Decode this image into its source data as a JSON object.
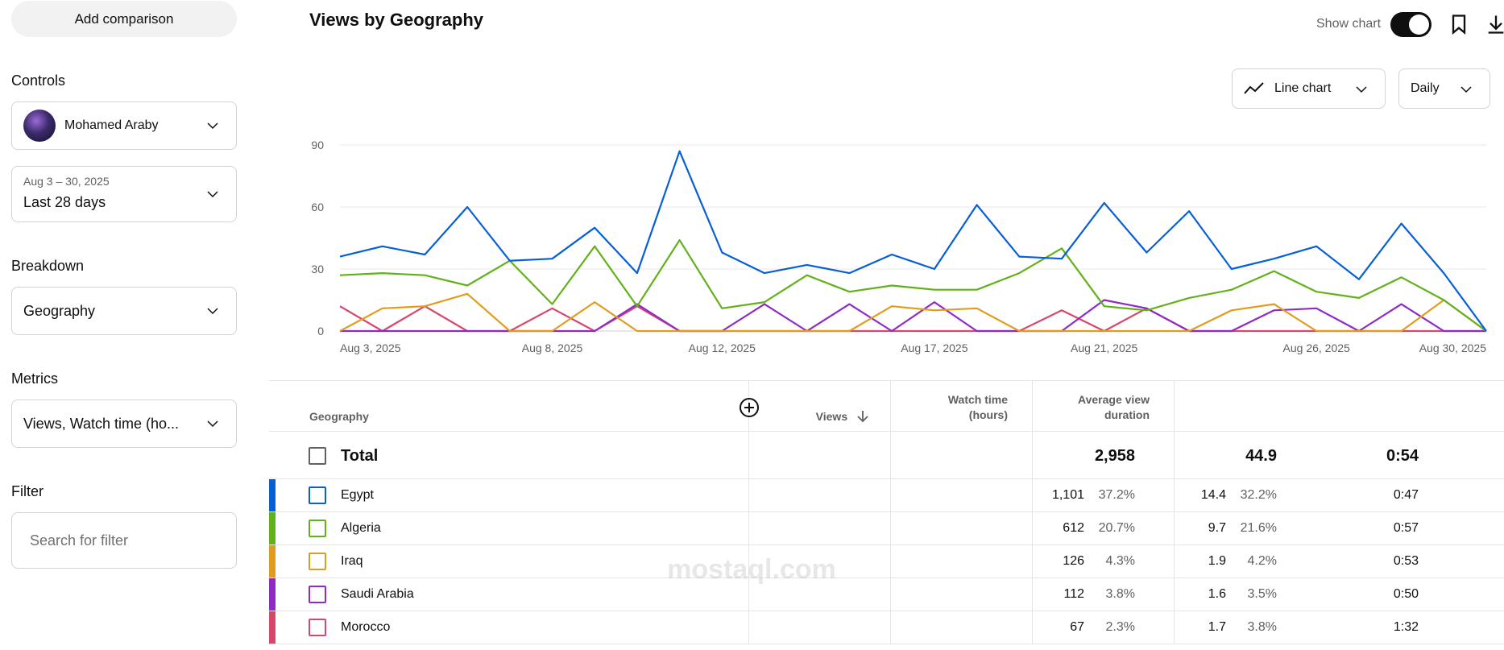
{
  "sidebar": {
    "add_comparison_label": "Add comparison",
    "controls_title": "Controls",
    "channel_name": "Mohamed Araby",
    "date_range_small": "Aug 3 – 30, 2025",
    "date_range_label": "Last 28 days",
    "breakdown_title": "Breakdown",
    "breakdown_value": "Geography",
    "metrics_title": "Metrics",
    "metrics_value": "Views, Watch time (ho...",
    "filter_title": "Filter",
    "filter_placeholder": "Search for filter"
  },
  "header": {
    "title": "Views by Geography",
    "show_chart_label": "Show chart",
    "show_chart_on": true,
    "chart_type_label": "Line chart",
    "period_label": "Daily"
  },
  "chart_data": {
    "type": "line",
    "x": [
      "Aug 3",
      "Aug 4",
      "Aug 5",
      "Aug 6",
      "Aug 7",
      "Aug 8",
      "Aug 9",
      "Aug 10",
      "Aug 11",
      "Aug 12",
      "Aug 13",
      "Aug 14",
      "Aug 15",
      "Aug 16",
      "Aug 17",
      "Aug 18",
      "Aug 19",
      "Aug 20",
      "Aug 21",
      "Aug 22",
      "Aug 23",
      "Aug 24",
      "Aug 25",
      "Aug 26",
      "Aug 27",
      "Aug 28",
      "Aug 29",
      "Aug 30"
    ],
    "x_tick_labels": [
      "Aug 3, 2025",
      "Aug 8, 2025",
      "Aug 12, 2025",
      "Aug 17, 2025",
      "Aug 21, 2025",
      "Aug 26, 2025",
      "Aug 30, 2025"
    ],
    "x_tick_days": [
      3,
      8,
      12,
      17,
      21,
      26,
      30
    ],
    "y_ticks": [
      0,
      30,
      60,
      90
    ],
    "ylim": [
      0,
      90
    ],
    "grid": true,
    "series": [
      {
        "name": "Egypt",
        "color": "#065fd4",
        "values": [
          36,
          41,
          37,
          60,
          34,
          35,
          50,
          28,
          87,
          38,
          28,
          32,
          28,
          37,
          30,
          61,
          36,
          35,
          62,
          38,
          58,
          30,
          35,
          41,
          25,
          52,
          28,
          0
        ]
      },
      {
        "name": "Algeria",
        "color": "#63b11a",
        "values": [
          27,
          28,
          27,
          22,
          34,
          13,
          41,
          12,
          44,
          11,
          14,
          27,
          19,
          22,
          20,
          20,
          28,
          40,
          12,
          10,
          16,
          20,
          29,
          19,
          16,
          26,
          15,
          0
        ]
      },
      {
        "name": "Iraq",
        "color": "#e09d1d",
        "values": [
          0,
          11,
          12,
          18,
          0,
          0,
          14,
          0,
          0,
          0,
          0,
          0,
          0,
          12,
          10,
          11,
          0,
          0,
          0,
          0,
          0,
          10,
          13,
          0,
          0,
          0,
          15,
          0
        ]
      },
      {
        "name": "Saudi Arabia",
        "color": "#8d2bc4",
        "values": [
          0,
          0,
          0,
          0,
          0,
          0,
          0,
          13,
          0,
          0,
          13,
          0,
          13,
          0,
          14,
          0,
          0,
          0,
          15,
          11,
          0,
          0,
          10,
          11,
          0,
          13,
          0,
          0
        ]
      },
      {
        "name": "Morocco",
        "color": "#d6476b",
        "values": [
          12,
          0,
          12,
          0,
          0,
          11,
          0,
          12,
          0,
          0,
          0,
          0,
          0,
          0,
          0,
          0,
          0,
          10,
          0,
          11,
          0,
          0,
          0,
          0,
          0,
          0,
          0,
          0
        ]
      }
    ]
  },
  "table": {
    "col_geography": "Geography",
    "col_views": "Views",
    "col_watch_line1": "Watch time",
    "col_watch_line2": "(hours)",
    "col_avd_line1": "Average view",
    "col_avd_line2": "duration",
    "total": {
      "label": "Total",
      "views": "2,958",
      "watch": "44.9",
      "avd": "0:54"
    },
    "rows": [
      {
        "name": "Egypt",
        "color": "#065fd4",
        "views": "1,101",
        "views_pct": "37.2%",
        "watch": "14.4",
        "watch_pct": "32.2%",
        "avd": "0:47"
      },
      {
        "name": "Algeria",
        "color": "#63b11a",
        "views": "612",
        "views_pct": "20.7%",
        "watch": "9.7",
        "watch_pct": "21.6%",
        "avd": "0:57"
      },
      {
        "name": "Iraq",
        "color": "#e09d1d",
        "views": "126",
        "views_pct": "4.3%",
        "watch": "1.9",
        "watch_pct": "4.2%",
        "avd": "0:53"
      },
      {
        "name": "Saudi Arabia",
        "color": "#8d2bc4",
        "views": "112",
        "views_pct": "3.8%",
        "watch": "1.6",
        "watch_pct": "3.5%",
        "avd": "0:50"
      },
      {
        "name": "Morocco",
        "color": "#d6476b",
        "views": "67",
        "views_pct": "2.3%",
        "watch": "1.7",
        "watch_pct": "3.8%",
        "avd": "1:32"
      }
    ]
  },
  "watermark": "mostaql.com"
}
